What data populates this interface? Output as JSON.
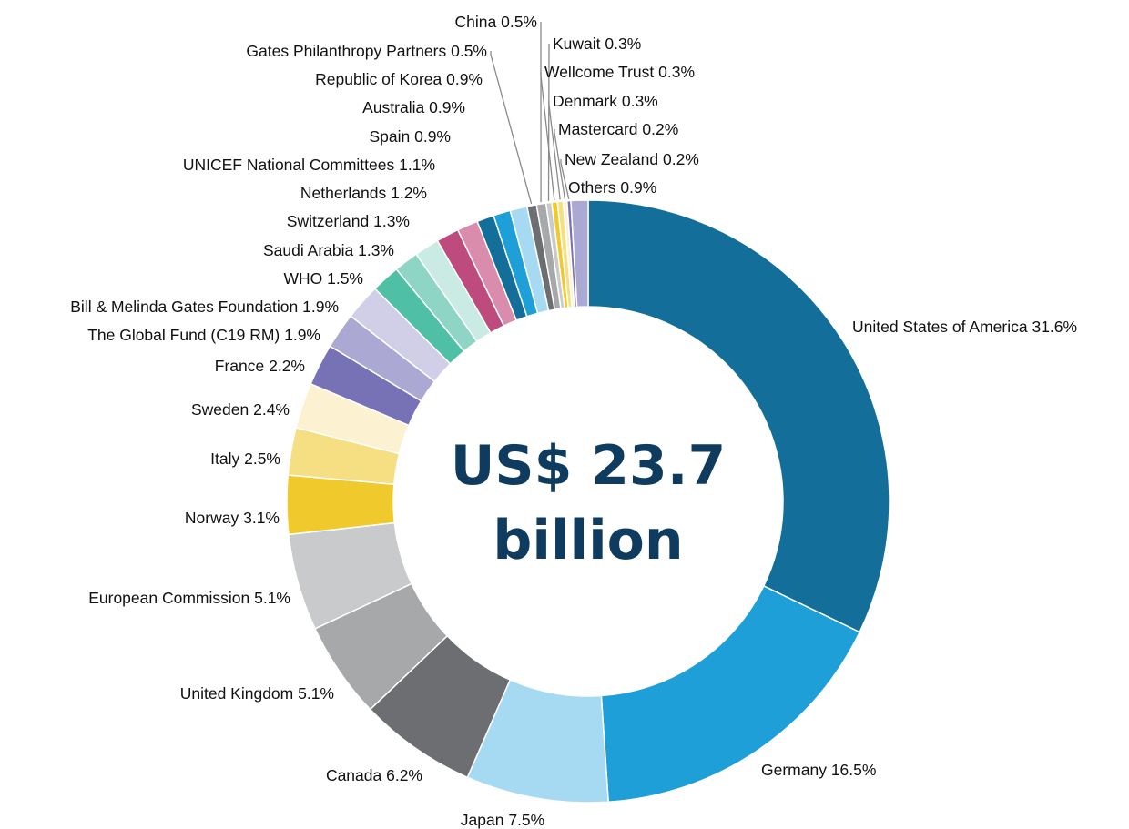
{
  "chart_data": {
    "type": "pie",
    "center_label": [
      "US$ 23.7",
      "billion"
    ],
    "slices": [
      {
        "name": "United States of America",
        "value": 31.6,
        "label": "United States of America 31.6%",
        "color": "#136f99"
      },
      {
        "name": "Germany",
        "value": 16.5,
        "label": "Germany 16.5%",
        "color": "#1e9fd8"
      },
      {
        "name": "Japan",
        "value": 7.5,
        "label": "Japan 7.5%",
        "color": "#a6d9f2"
      },
      {
        "name": "Canada",
        "value": 6.2,
        "label": "Canada 6.2%",
        "color": "#6d6e71"
      },
      {
        "name": "United Kingdom",
        "value": 5.1,
        "label": "United Kingdom 5.1%",
        "color": "#a7a8aa"
      },
      {
        "name": "European Commission",
        "value": 5.1,
        "label": "European Commission 5.1%",
        "color": "#c9cacc"
      },
      {
        "name": "Norway",
        "value": 3.1,
        "label": "Norway 3.1%",
        "color": "#f0c92c"
      },
      {
        "name": "Italy",
        "value": 2.5,
        "label": "Italy 2.5%",
        "color": "#f6df83"
      },
      {
        "name": "Sweden",
        "value": 2.4,
        "label": "Sweden 2.4%",
        "color": "#fcf2d2"
      },
      {
        "name": "France",
        "value": 2.2,
        "label": "France 2.2%",
        "color": "#7771b5"
      },
      {
        "name": "The Global Fund (C19 RM)",
        "value": 1.9,
        "label": "The Global Fund (C19 RM) 1.9%",
        "color": "#aba8d3"
      },
      {
        "name": "Bill & Melinda Gates Foundation",
        "value": 1.9,
        "label": "Bill & Melinda Gates Foundation 1.9%",
        "color": "#d1cfe7"
      },
      {
        "name": "WHO",
        "value": 1.5,
        "label": "WHO 1.5%",
        "color": "#4fbfa6"
      },
      {
        "name": "Saudi Arabia",
        "value": 1.3,
        "label": "Saudi Arabia 1.3%",
        "color": "#8fd5c6"
      },
      {
        "name": "Switzerland",
        "value": 1.3,
        "label": "Switzerland 1.3%",
        "color": "#c9ebe4"
      },
      {
        "name": "Netherlands",
        "value": 1.2,
        "label": "Netherlands 1.2%",
        "color": "#bd4b7d"
      },
      {
        "name": "UNICEF National Committees",
        "value": 1.1,
        "label": "UNICEF National Committees 1.1%",
        "color": "#d98cab"
      },
      {
        "name": "Spain",
        "value": 0.9,
        "label": "Spain 0.9%",
        "color": "#136f99"
      },
      {
        "name": "Australia",
        "value": 0.9,
        "label": "Australia 0.9%",
        "color": "#1e9fd8"
      },
      {
        "name": "Republic of Korea",
        "value": 0.9,
        "label": "Republic of Korea 0.9%",
        "color": "#a6d9f2"
      },
      {
        "name": "Gates Philanthropy Partners",
        "value": 0.5,
        "label": "Gates Philanthropy Partners 0.5%",
        "color": "#6d6e71"
      },
      {
        "name": "China",
        "value": 0.5,
        "label": "China 0.5%",
        "color": "#a7a8aa"
      },
      {
        "name": "Kuwait",
        "value": 0.3,
        "label": "Kuwait 0.3%",
        "color": "#c9cacc"
      },
      {
        "name": "Wellcome Trust",
        "value": 0.3,
        "label": "Wellcome Trust 0.3%",
        "color": "#f0c92c"
      },
      {
        "name": "Denmark",
        "value": 0.3,
        "label": "Denmark 0.3%",
        "color": "#f6df83"
      },
      {
        "name": "Mastercard",
        "value": 0.2,
        "label": "Mastercard 0.2%",
        "color": "#fcf2d2"
      },
      {
        "name": "New Zealand",
        "value": 0.2,
        "label": "New Zealand 0.2%",
        "color": "#7771b5"
      },
      {
        "name": "Others",
        "value": 0.9,
        "label": "Others 0.9%",
        "color": "#aba8d3"
      }
    ]
  }
}
